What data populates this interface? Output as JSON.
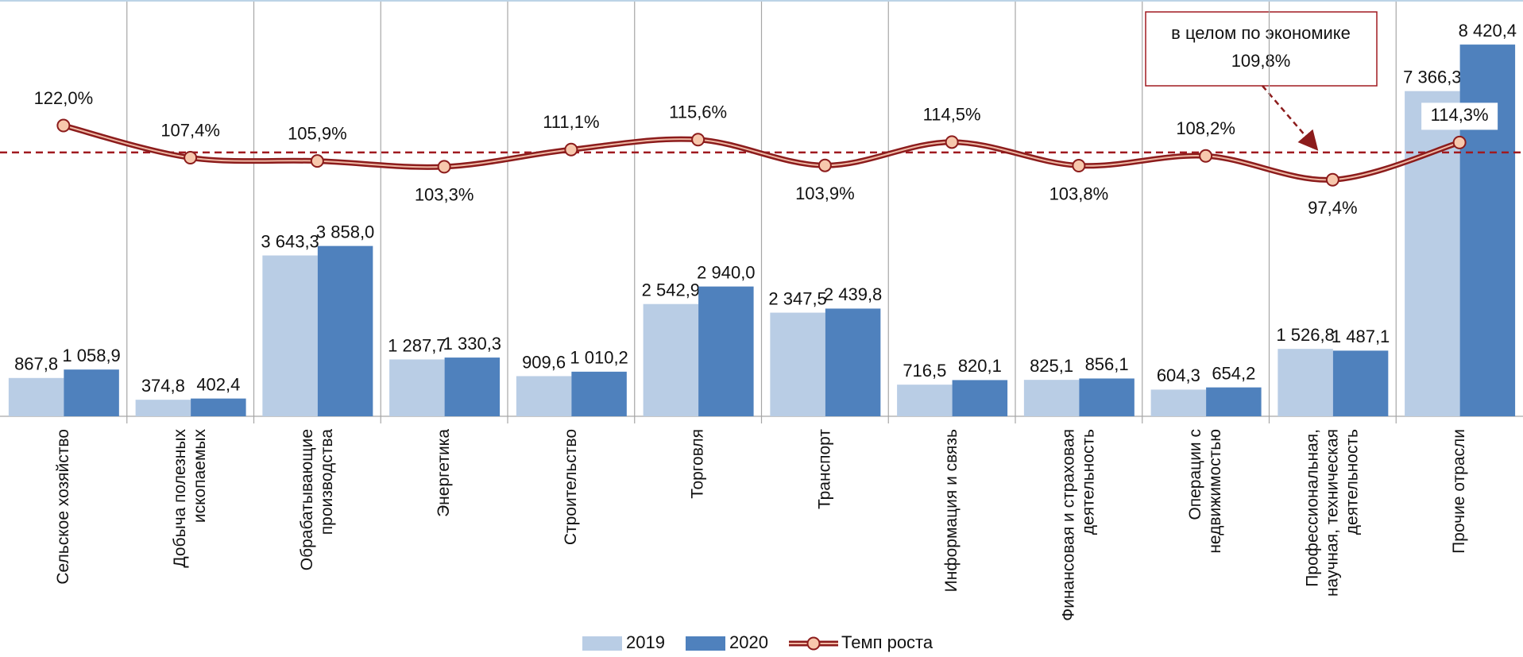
{
  "chart_data": {
    "type": "bar",
    "categories": [
      [
        "Сельское хозяйство"
      ],
      [
        "Добыча полезных",
        "ископаемых"
      ],
      [
        "Обрабатывающие",
        "производства"
      ],
      [
        "Энергетика"
      ],
      [
        "Строительство"
      ],
      [
        "Торговля"
      ],
      [
        "Транспорт"
      ],
      [
        "Информация и связь"
      ],
      [
        "Финансовая и страховая",
        "деятельность"
      ],
      [
        "Операции с",
        "недвижимостью"
      ],
      [
        "Профессиональная,",
        "научная, техническая",
        "деятельность"
      ],
      [
        "Прочие отрасли"
      ]
    ],
    "series": [
      {
        "name": "2019",
        "color": "#b9cde5",
        "values": [
          867.8,
          374.8,
          3643.3,
          1287.7,
          909.6,
          2542.9,
          2347.5,
          716.5,
          825.1,
          604.3,
          1526.8,
          7366.3
        ],
        "value_labels": [
          "867,8",
          "374,8",
          "3 643,3",
          "1 287,7",
          "909,6",
          "2 542,9",
          "2 347,5",
          "716,5",
          "825,1",
          "604,3",
          "1 526,8",
          "7 366,3"
        ]
      },
      {
        "name": "2020",
        "color": "#4f81bd",
        "values": [
          1058.9,
          402.4,
          3858.0,
          1330.3,
          1010.2,
          2940.0,
          2439.8,
          820.1,
          856.1,
          654.2,
          1487.1,
          8420.4
        ],
        "value_labels": [
          "1 058,9",
          "402,4",
          "3 858,0",
          "1 330,3",
          "1 010,2",
          "2 940,0",
          "2 439,8",
          "820,1",
          "856,1",
          "654,2",
          "1 487,1",
          "8 420,4"
        ]
      },
      {
        "name": "Темп роста",
        "type": "line",
        "axis": "y2",
        "color": "#8c1c1c",
        "marker_color": "#f7c8ad",
        "values": [
          122.0,
          107.4,
          105.9,
          103.3,
          111.1,
          115.6,
          103.9,
          114.5,
          103.8,
          108.2,
          97.4,
          114.3
        ],
        "value_labels": [
          "122,0%",
          "107,4%",
          "105,9%",
          "103,3%",
          "111,1%",
          "115,6%",
          "103,9%",
          "114,5%",
          "103,8%",
          "108,2%",
          "97,4%",
          "114,3%"
        ]
      }
    ],
    "ylim": [
      0,
      9430
    ],
    "y2lim": [
      -10,
      179
    ],
    "reference": {
      "value": 109.8,
      "label": "109,8%",
      "text": "в целом по экономике",
      "color": "#a01a20"
    }
  }
}
